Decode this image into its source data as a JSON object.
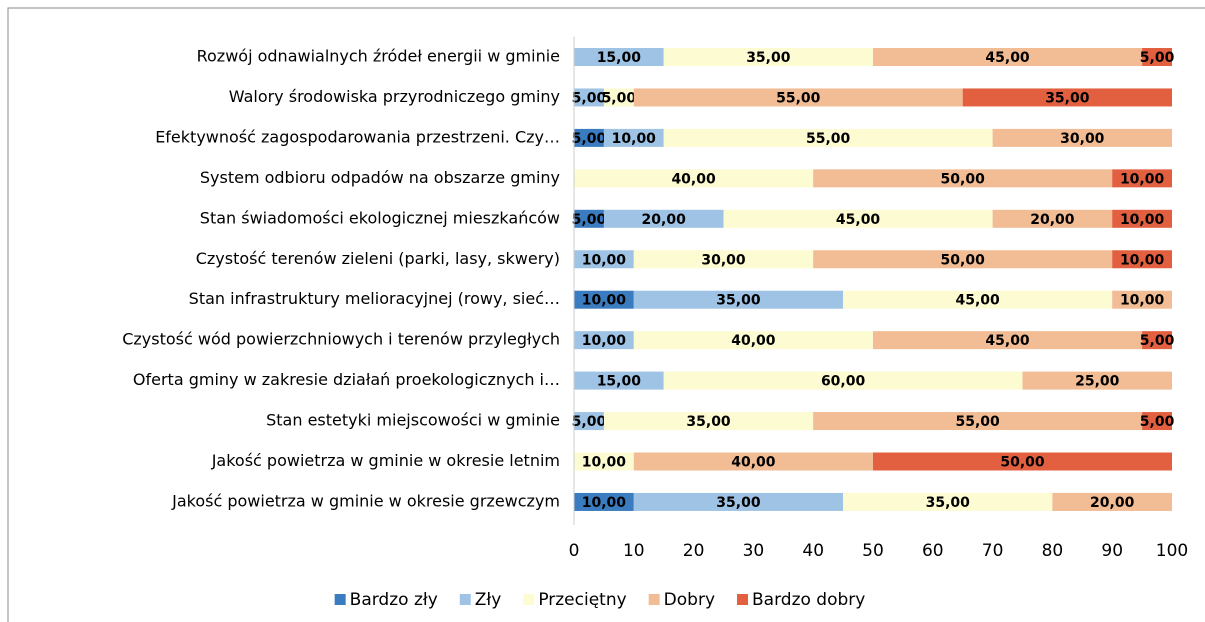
{
  "chart_data": {
    "type": "stacked_barh",
    "categories": [
      "Rozwój odnawialnych źródeł energii w gminie",
      "Walory środowiska przyrodniczego gminy",
      "Efektywność zagospodarowania przestrzeni. Czy…",
      "System odbioru odpadów na obszarze gminy",
      "Stan świadomości ekologicznej mieszkańców",
      "Czystość terenów zieleni (parki, lasy, skwery)",
      "Stan infrastruktury melioracyjnej (rowy, sieć…",
      "Czystość wód powierzchniowych i terenów przyległych",
      "Oferta gminy w zakresie działań proekologicznych i…",
      "Stan estetyki miejscowości w gminie",
      "Jakość powietrza w gminie w okresie letnim",
      "Jakość powietrza w gminie w okresie grzewczym"
    ],
    "series": [
      {
        "name": "Bardzo zły",
        "color": "#3b7bbf",
        "values": [
          null,
          null,
          5,
          null,
          5,
          null,
          10,
          null,
          null,
          null,
          null,
          10
        ],
        "value_labels": [
          null,
          null,
          "5,00",
          null,
          "5,00",
          null,
          "10,00",
          null,
          null,
          null,
          null,
          "10,00"
        ]
      },
      {
        "name": "Zły",
        "color": "#9fc3e5",
        "values": [
          15,
          5,
          10,
          null,
          20,
          10,
          35,
          10,
          15,
          5,
          null,
          35
        ],
        "value_labels": [
          "15,00",
          "5,00",
          "10,00",
          null,
          "20,00",
          "10,00",
          "35,00",
          "10,00",
          "15,00",
          "5,00",
          null,
          "35,00"
        ]
      },
      {
        "name": "Przeciętny",
        "color": "#fdfbd2",
        "values": [
          35,
          5,
          55,
          40,
          45,
          30,
          45,
          40,
          60,
          35,
          10,
          35
        ],
        "value_labels": [
          "35,00",
          "5,00",
          "55,00",
          "40,00",
          "45,00",
          "30,00",
          "45,00",
          "40,00",
          "60,00",
          "35,00",
          "10,00",
          "35,00"
        ]
      },
      {
        "name": "Dobry",
        "color": "#f2bc94",
        "values": [
          45,
          55,
          30,
          50,
          20,
          50,
          10,
          45,
          25,
          55,
          40,
          20
        ],
        "value_labels": [
          "45,00",
          "55,00",
          "30,00",
          "50,00",
          "20,00",
          "50,00",
          "10,00",
          "45,00",
          "25,00",
          "55,00",
          "40,00",
          "20,00"
        ]
      },
      {
        "name": "Bardzo dobry",
        "color": "#e2603f",
        "values": [
          5,
          35,
          null,
          10,
          10,
          10,
          null,
          5,
          null,
          5,
          50,
          null
        ],
        "value_labels": [
          "5,00",
          "35,00",
          null,
          "10,00",
          "10,00",
          "10,00",
          null,
          "5,00",
          null,
          "5,00",
          "50,00",
          null
        ]
      }
    ],
    "xlim": [
      0,
      100
    ],
    "xticks": [
      0,
      10,
      20,
      30,
      40,
      50,
      60,
      70,
      80,
      90,
      100
    ],
    "legend": "bottom"
  }
}
